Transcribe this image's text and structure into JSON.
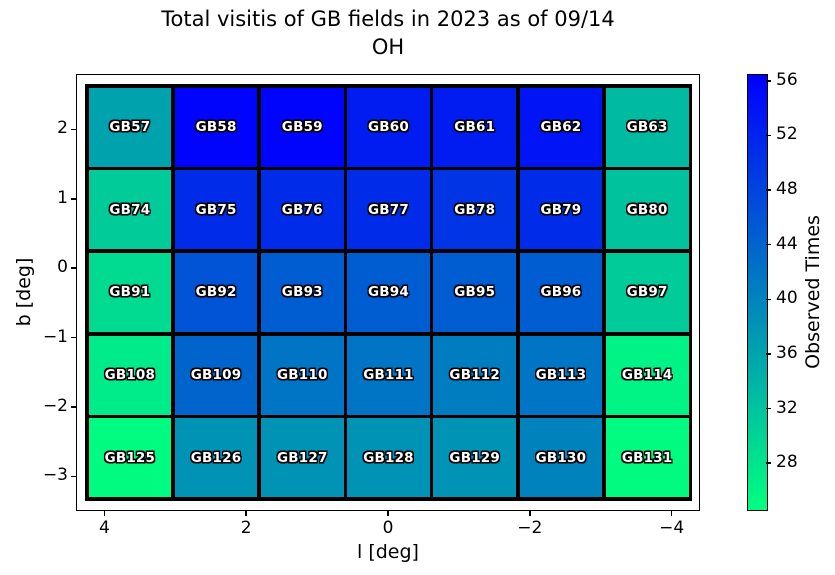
{
  "title": {
    "line1": "Total visitis of GB fields in 2023 as of 09/14",
    "line2": "OH"
  },
  "chart_data": {
    "type": "heatmap",
    "title": "Total visitis of GB fields in 2023 as of 09/14 OH",
    "xlabel": "l [deg]",
    "ylabel": "b [deg]",
    "xlim": [
      4.4,
      -4.4
    ],
    "ylim": [
      -3.5,
      2.8
    ],
    "grid": false,
    "x_ticks": [
      {
        "label": "4",
        "value": 4
      },
      {
        "label": "2",
        "value": 2
      },
      {
        "label": "0",
        "value": 0
      },
      {
        "label": "−2",
        "value": -2
      },
      {
        "label": "−4",
        "value": -4
      }
    ],
    "y_ticks": [
      {
        "label": "2",
        "value": 2
      },
      {
        "label": "1",
        "value": 1
      },
      {
        "label": "0",
        "value": 0
      },
      {
        "label": "−1",
        "value": -1
      },
      {
        "label": "−2",
        "value": -2
      },
      {
        "label": "−3",
        "value": -3
      }
    ],
    "rows": [
      [
        {
          "label": "GB57",
          "value": 36
        },
        {
          "label": "GB58",
          "value": 56
        },
        {
          "label": "GB59",
          "value": 56
        },
        {
          "label": "GB60",
          "value": 53
        },
        {
          "label": "GB61",
          "value": 53
        },
        {
          "label": "GB62",
          "value": 54
        },
        {
          "label": "GB63",
          "value": 33
        }
      ],
      [
        {
          "label": "GB74",
          "value": 31
        },
        {
          "label": "GB75",
          "value": 51
        },
        {
          "label": "GB76",
          "value": 51
        },
        {
          "label": "GB77",
          "value": 51
        },
        {
          "label": "GB78",
          "value": 50
        },
        {
          "label": "GB79",
          "value": 51
        },
        {
          "label": "GB80",
          "value": 32
        }
      ],
      [
        {
          "label": "GB91",
          "value": 29
        },
        {
          "label": "GB92",
          "value": 46
        },
        {
          "label": "GB93",
          "value": 45
        },
        {
          "label": "GB94",
          "value": 45
        },
        {
          "label": "GB95",
          "value": 45
        },
        {
          "label": "GB96",
          "value": 45
        },
        {
          "label": "GB97",
          "value": 31
        }
      ],
      [
        {
          "label": "GB108",
          "value": 27
        },
        {
          "label": "GB109",
          "value": 44
        },
        {
          "label": "GB110",
          "value": 42
        },
        {
          "label": "GB111",
          "value": 42
        },
        {
          "label": "GB112",
          "value": 41
        },
        {
          "label": "GB113",
          "value": 42
        },
        {
          "label": "GB114",
          "value": 26
        }
      ],
      [
        {
          "label": "GB125",
          "value": 25
        },
        {
          "label": "GB126",
          "value": 38
        },
        {
          "label": "GB127",
          "value": 38
        },
        {
          "label": "GB128",
          "value": 38
        },
        {
          "label": "GB129",
          "value": 38
        },
        {
          "label": "GB130",
          "value": 40
        },
        {
          "label": "GB131",
          "value": 25
        }
      ]
    ],
    "colorbar": {
      "label": "Observed Times",
      "ticks": [
        56,
        52,
        48,
        44,
        40,
        36,
        32,
        28
      ],
      "vmin": 24.5,
      "vmax": 56.5,
      "colormap": "winter_r",
      "top_color": "#0000ff",
      "bottom_color": "#00ff80"
    }
  }
}
